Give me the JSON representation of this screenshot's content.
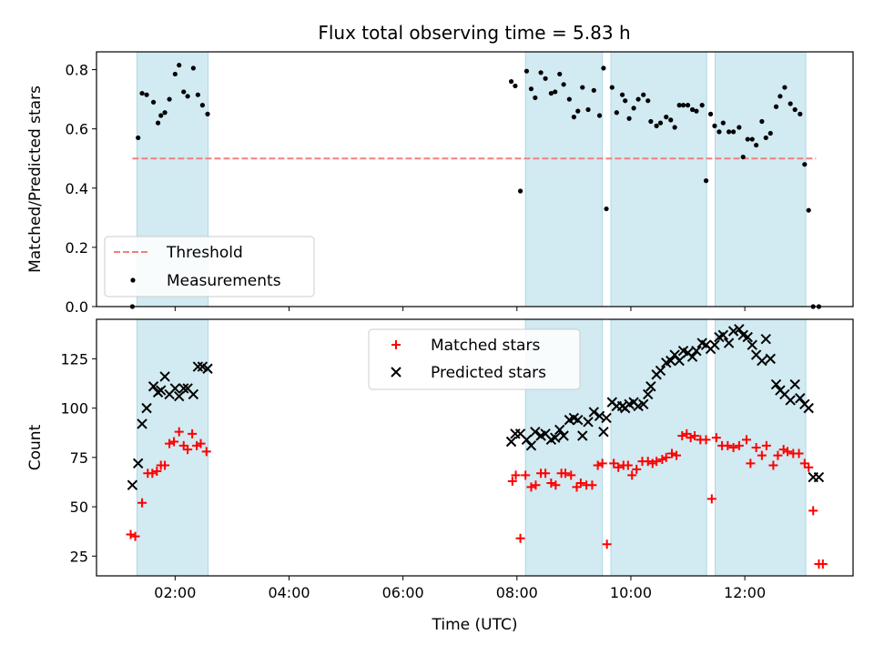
{
  "title": "Flux total observing time = 5.83 h",
  "colors": {
    "band": "#add8e6",
    "threshold": "#f08080",
    "measurement": "#000000",
    "matched": "#ff0000",
    "predicted": "#000000"
  },
  "chart_data": [
    {
      "type": "scatter",
      "ylabel": "Matched/Predicted stars",
      "xlabel": "",
      "x_unit": "hours UTC",
      "xlim": [
        0.62,
        13.9
      ],
      "ylim": [
        0.0,
        0.86
      ],
      "yticks": [
        "0.0",
        "0.2",
        "0.4",
        "0.6",
        "0.8"
      ],
      "ytick_values": [
        0.0,
        0.2,
        0.4,
        0.6,
        0.8
      ],
      "xticks_values": [
        2,
        4,
        6,
        8,
        10,
        12
      ],
      "bands": [
        [
          1.33,
          2.58
        ],
        [
          8.15,
          9.5
        ],
        [
          9.65,
          11.33
        ],
        [
          11.48,
          13.07
        ]
      ],
      "threshold": {
        "name": "Threshold",
        "value": 0.5,
        "x_range": [
          1.25,
          13.25
        ]
      },
      "legend": {
        "loc": "lower-left",
        "entries": [
          "Threshold",
          "Measurements"
        ]
      },
      "series": [
        {
          "name": "Measurements",
          "x": [
            1.25,
            1.35,
            1.42,
            1.5,
            1.62,
            1.7,
            1.75,
            1.82,
            1.9,
            2.0,
            2.07,
            2.15,
            2.22,
            2.32,
            2.4,
            2.48,
            2.57,
            7.9,
            7.97,
            8.06,
            8.17,
            8.25,
            8.32,
            8.42,
            8.5,
            8.6,
            8.67,
            8.75,
            8.82,
            8.92,
            9.0,
            9.07,
            9.15,
            9.25,
            9.35,
            9.45,
            9.52,
            9.57,
            9.67,
            9.75,
            9.85,
            9.9,
            9.97,
            10.05,
            10.13,
            10.22,
            10.3,
            10.35,
            10.45,
            10.52,
            10.62,
            10.7,
            10.77,
            10.85,
            10.92,
            11.0,
            11.08,
            11.15,
            11.25,
            11.32,
            11.4,
            11.47,
            11.55,
            11.62,
            11.72,
            11.8,
            11.9,
            11.97,
            12.05,
            12.13,
            12.2,
            12.3,
            12.37,
            12.45,
            12.55,
            12.62,
            12.7,
            12.8,
            12.88,
            12.97,
            13.05,
            13.12,
            13.2,
            13.3
          ],
          "y": [
            0.0,
            0.57,
            0.72,
            0.715,
            0.69,
            0.62,
            0.645,
            0.655,
            0.7,
            0.785,
            0.815,
            0.725,
            0.71,
            0.805,
            0.715,
            0.68,
            0.65,
            0.76,
            0.745,
            0.39,
            0.795,
            0.735,
            0.705,
            0.79,
            0.77,
            0.72,
            0.725,
            0.785,
            0.75,
            0.7,
            0.64,
            0.66,
            0.74,
            0.665,
            0.73,
            0.645,
            0.805,
            0.33,
            0.74,
            0.655,
            0.715,
            0.695,
            0.635,
            0.67,
            0.7,
            0.715,
            0.695,
            0.625,
            0.61,
            0.62,
            0.64,
            0.63,
            0.605,
            0.68,
            0.68,
            0.68,
            0.665,
            0.66,
            0.68,
            0.425,
            0.65,
            0.61,
            0.59,
            0.62,
            0.59,
            0.59,
            0.605,
            0.505,
            0.565,
            0.565,
            0.545,
            0.625,
            0.57,
            0.585,
            0.675,
            0.71,
            0.74,
            0.685,
            0.665,
            0.65,
            0.48,
            0.325,
            0.0,
            0.0
          ]
        }
      ]
    },
    {
      "type": "scatter",
      "ylabel": "Count",
      "xlabel": "Time (UTC)",
      "x_unit": "hours UTC",
      "xlim": [
        0.62,
        13.9
      ],
      "ylim": [
        15,
        145
      ],
      "yticks": [
        "25",
        "50",
        "75",
        "100",
        "125"
      ],
      "ytick_values": [
        25,
        50,
        75,
        100,
        125
      ],
      "xticks": [
        "02:00",
        "04:00",
        "06:00",
        "08:00",
        "10:00",
        "12:00"
      ],
      "xticks_values": [
        2,
        4,
        6,
        8,
        10,
        12
      ],
      "bands": [
        [
          1.33,
          2.58
        ],
        [
          8.15,
          9.5
        ],
        [
          9.65,
          11.33
        ],
        [
          11.48,
          13.07
        ]
      ],
      "legend": {
        "loc": "upper-center",
        "entries": [
          "Matched stars",
          "Predicted stars"
        ]
      },
      "series": [
        {
          "name": "Matched stars",
          "marker": "plus",
          "x": [
            1.22,
            1.3,
            1.42,
            1.52,
            1.6,
            1.68,
            1.75,
            1.82,
            1.9,
            1.98,
            2.07,
            2.15,
            2.22,
            2.3,
            2.38,
            2.45,
            2.55,
            7.92,
            7.98,
            8.06,
            8.15,
            8.25,
            8.33,
            8.42,
            8.5,
            8.6,
            8.68,
            8.78,
            8.85,
            8.95,
            9.05,
            9.12,
            9.22,
            9.32,
            9.42,
            9.5,
            9.58,
            9.7,
            9.78,
            9.87,
            9.95,
            10.02,
            10.1,
            10.2,
            10.3,
            10.38,
            10.45,
            10.55,
            10.62,
            10.72,
            10.8,
            10.9,
            10.98,
            11.05,
            11.12,
            11.22,
            11.32,
            11.42,
            11.5,
            11.6,
            11.7,
            11.8,
            11.9,
            12.03,
            12.1,
            12.2,
            12.3,
            12.38,
            12.5,
            12.58,
            12.68,
            12.75,
            12.85,
            12.95,
            13.05,
            13.12,
            13.2,
            13.3
          ],
          "y": [
            36,
            35,
            52,
            67,
            67,
            68,
            71,
            71,
            82,
            83,
            88,
            81,
            79,
            87,
            81,
            82,
            78,
            63,
            66,
            34,
            66,
            60,
            61,
            67,
            67,
            62,
            61,
            67,
            67,
            66,
            60,
            62,
            61,
            61,
            71,
            72,
            31,
            72,
            70,
            71,
            71,
            66,
            69,
            73,
            73,
            72,
            73,
            74,
            75,
            77,
            76,
            86,
            87,
            85,
            86,
            84,
            84,
            54,
            85,
            81,
            81,
            80,
            81,
            84,
            72,
            80,
            76,
            81,
            71,
            76,
            79,
            78,
            77,
            77,
            72,
            70,
            48,
            21
          ],
          "extra_x": [
            13.37
          ],
          "extra_y": [
            21
          ]
        },
        {
          "name": "Predicted stars",
          "marker": "x",
          "x": [
            1.25,
            1.35,
            1.42,
            1.5,
            1.62,
            1.7,
            1.75,
            1.82,
            1.9,
            2.0,
            2.07,
            2.15,
            2.22,
            2.32,
            2.4,
            2.48,
            2.57,
            7.9,
            7.97,
            8.06,
            8.17,
            8.25,
            8.32,
            8.42,
            8.5,
            8.6,
            8.67,
            8.75,
            8.82,
            8.92,
            9.0,
            9.07,
            9.15,
            9.25,
            9.35,
            9.45,
            9.52,
            9.57,
            9.67,
            9.75,
            9.85,
            9.9,
            9.97,
            10.05,
            10.13,
            10.22,
            10.3,
            10.35,
            10.45,
            10.52,
            10.62,
            10.7,
            10.77,
            10.85,
            10.92,
            11.0,
            11.08,
            11.15,
            11.25,
            11.32,
            11.4,
            11.47,
            11.55,
            11.62,
            11.72,
            11.8,
            11.9,
            11.97,
            12.05,
            12.13,
            12.2,
            12.3,
            12.37,
            12.45,
            12.55,
            12.62,
            12.7,
            12.8,
            12.88,
            12.97,
            13.05,
            13.12,
            13.2,
            13.3
          ],
          "y": [
            61,
            72,
            92,
            100,
            111,
            108,
            109,
            116,
            107,
            110,
            106,
            110,
            110,
            107,
            121,
            121,
            120,
            83,
            87,
            87,
            84,
            81,
            88,
            86,
            87,
            84,
            85,
            89,
            86,
            94,
            95,
            94,
            86,
            93,
            98,
            96,
            88,
            95,
            103,
            101,
            101,
            100,
            102,
            103,
            101,
            102,
            107,
            111,
            117,
            119,
            123,
            124,
            127,
            124,
            129,
            128,
            126,
            129,
            133,
            132,
            130,
            132,
            136,
            137,
            133,
            139,
            140,
            137,
            136,
            132,
            127,
            124,
            135,
            125,
            112,
            109,
            107,
            104,
            112,
            105,
            102,
            100,
            65,
            65
          ]
        }
      ]
    }
  ]
}
